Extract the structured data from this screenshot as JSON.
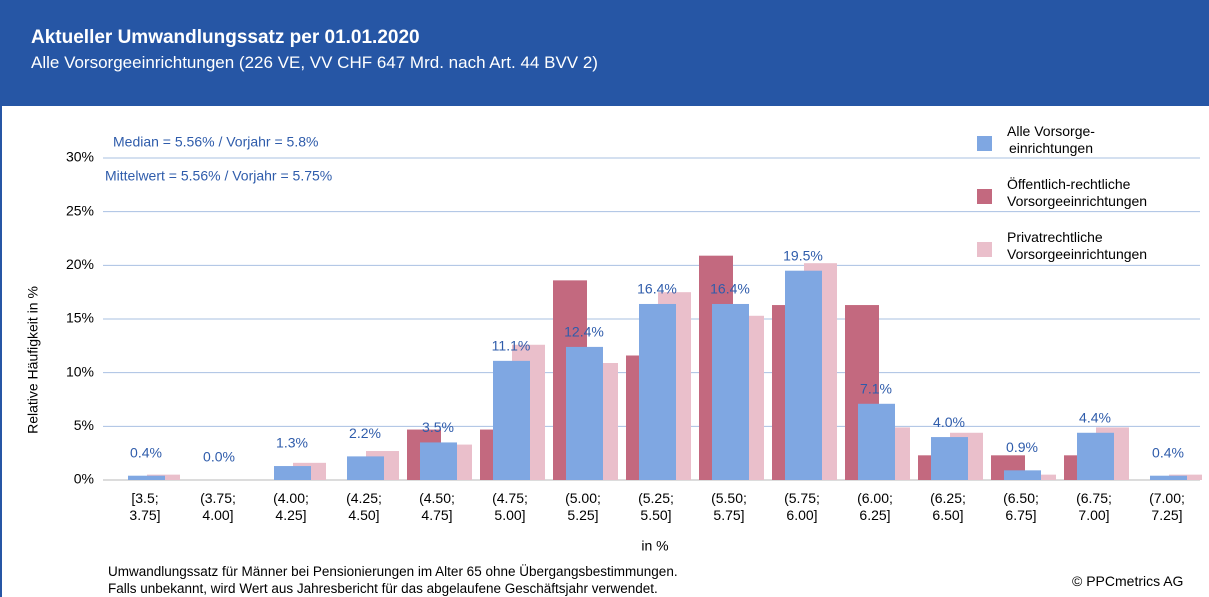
{
  "title": "Aktueller Umwandlungssatz per 01.01.2020",
  "subtitle": "Alle Vorsorgeeinrichtungen (226 VE, VV CHF 647 Mrd. nach Art. 44 BVV 2)",
  "chart_data": {
    "type": "bar",
    "x_label": "in %",
    "y_label": "Relative Häufigkeit in %",
    "annotations": [
      "Median = 5.56% / Vorjahr = 5.8%",
      "Mittelwert = 5.56% / Vorjahr = 5.75%"
    ],
    "categories": [
      "[3.5;\n3.75]",
      "(3.75;\n4.00]",
      "(4.00;\n4.25]",
      "(4.25;\n4.50]",
      "(4.50;\n4.75]",
      "(4.75;\n5.00]",
      "(5.00;\n5.25]",
      "(5.25;\n5.50]",
      "(5.50;\n5.75]",
      "(5.75;\n6.00]",
      "(6.00;\n6.25]",
      "(6.25;\n6.50]",
      "(6.50;\n6.75]",
      "(6.75;\n7.00]",
      "(7.00;\n7.25]"
    ],
    "series": [
      {
        "name": "Alle Vorsorge-\neinrichtungen",
        "color": "#7fa7e2",
        "values": [
          0.4,
          0.0,
          1.3,
          2.2,
          3.5,
          11.1,
          12.4,
          16.4,
          16.4,
          19.5,
          7.1,
          4.0,
          0.9,
          4.4,
          0.4
        ],
        "value_labels": [
          "0.4%",
          "0.0%",
          "1.3%",
          "2.2%",
          "3.5%",
          "11.1%",
          "12.4%",
          "16.4%",
          "16.4%",
          "19.5%",
          "7.1%",
          "4.0%",
          "0.9%",
          "4.4%",
          "0.4%"
        ]
      },
      {
        "name": "Öffentlich-rechtliche\nVorsorgeeinrichtungen",
        "color": "#c3697f",
        "values": [
          0,
          0,
          0,
          0,
          4.7,
          4.7,
          18.6,
          11.6,
          20.9,
          16.3,
          16.3,
          2.3,
          2.3,
          2.3,
          0
        ]
      },
      {
        "name": "Privatrechtliche\nVorsorgeeinrichtungen",
        "color": "#eabfcb",
        "values": [
          0.5,
          0,
          1.6,
          2.7,
          3.3,
          12.6,
          10.9,
          17.5,
          15.3,
          20.2,
          4.9,
          4.4,
          0.5,
          4.9,
          0.5
        ]
      }
    ],
    "ylim": [
      0,
      30
    ],
    "yticks": [
      {
        "value": 0,
        "label": "0%"
      },
      {
        "value": 5,
        "label": "5%"
      },
      {
        "value": 10,
        "label": "10%"
      },
      {
        "value": 15,
        "label": "15%"
      },
      {
        "value": 20,
        "label": "20%"
      },
      {
        "value": 25,
        "label": "25%"
      },
      {
        "value": 30,
        "label": "30%"
      }
    ],
    "grid": true,
    "legend": "top-right",
    "footnote": "Umwandlungssatz für Männer bei Pensionierungen im Alter 65 ohne Übergangsbestimmungen.\nFalls unbekannt, wird Wert aus Jahresbericht für das abgelaufene Geschäftsjahr verwendet.",
    "source": "© PPCmetrics AG"
  }
}
